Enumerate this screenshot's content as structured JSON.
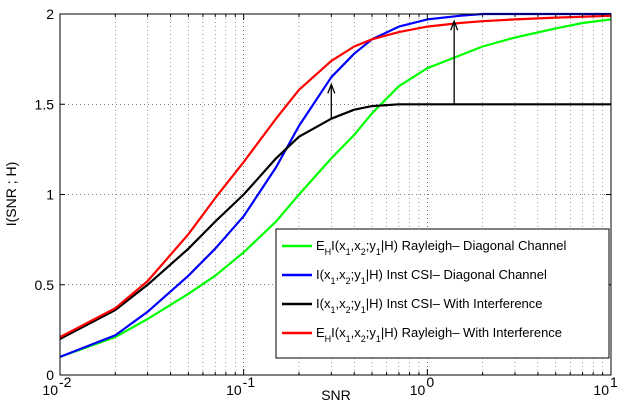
{
  "chart_data": {
    "type": "line",
    "title": "",
    "xlabel": "SNR",
    "ylabel": "I(SNR ; H)",
    "x_scale": "log",
    "xlim": [
      0.01,
      10
    ],
    "ylim": [
      0,
      2
    ],
    "grid": true,
    "legend_position": "lower-right",
    "x_ticks": [
      {
        "value": 0.01,
        "base": "10",
        "exp": "-2"
      },
      {
        "value": 0.1,
        "base": "10",
        "exp": "-1"
      },
      {
        "value": 1,
        "base": "10",
        "exp": "0"
      },
      {
        "value": 10,
        "base": "10",
        "exp": "1"
      }
    ],
    "y_ticks": [
      {
        "value": 0,
        "label": "0"
      },
      {
        "value": 0.5,
        "label": "0.5"
      },
      {
        "value": 1,
        "label": "1"
      },
      {
        "value": 1.5,
        "label": "1.5"
      },
      {
        "value": 2,
        "label": "2"
      }
    ],
    "series": [
      {
        "key": "green",
        "color": "#00ff00",
        "legend_parts": [
          [
            "E",
            ""
          ],
          [
            "H",
            "sub"
          ],
          [
            "I(x",
            ""
          ],
          [
            "1",
            "sub"
          ],
          [
            ",x",
            ""
          ],
          [
            "2",
            "sub"
          ],
          [
            ";y",
            ""
          ],
          [
            "1",
            "sub"
          ],
          [
            "|H) Rayleigh– Diagonal Channel",
            ""
          ]
        ],
        "x": [
          0.01,
          0.02,
          0.03,
          0.05,
          0.07,
          0.1,
          0.15,
          0.2,
          0.3,
          0.4,
          0.5,
          0.7,
          1,
          1.5,
          2,
          3,
          5,
          7,
          10
        ],
        "y": [
          0.1,
          0.21,
          0.31,
          0.45,
          0.55,
          0.68,
          0.85,
          1.0,
          1.2,
          1.33,
          1.45,
          1.6,
          1.7,
          1.77,
          1.82,
          1.87,
          1.92,
          1.95,
          1.97
        ]
      },
      {
        "key": "blue",
        "color": "#0000ff",
        "legend_parts": [
          [
            "I(x",
            ""
          ],
          [
            "1",
            "sub"
          ],
          [
            ",x",
            ""
          ],
          [
            "2",
            "sub"
          ],
          [
            ";y",
            ""
          ],
          [
            "1",
            "sub"
          ],
          [
            "|H) Inst CSI– Diagonal Channel",
            ""
          ]
        ],
        "x": [
          0.01,
          0.02,
          0.03,
          0.05,
          0.07,
          0.1,
          0.15,
          0.2,
          0.3,
          0.4,
          0.5,
          0.7,
          1,
          1.5,
          2,
          3,
          5,
          10
        ],
        "y": [
          0.1,
          0.22,
          0.35,
          0.55,
          0.7,
          0.88,
          1.15,
          1.38,
          1.65,
          1.78,
          1.86,
          1.93,
          1.97,
          1.99,
          2.0,
          2.0,
          2.0,
          2.0
        ]
      },
      {
        "key": "black",
        "color": "#000000",
        "legend_parts": [
          [
            "I(x",
            ""
          ],
          [
            "1",
            "sub"
          ],
          [
            ",x",
            ""
          ],
          [
            "2",
            "sub"
          ],
          [
            ";y",
            ""
          ],
          [
            "1",
            "sub"
          ],
          [
            "|H) Inst CSI– With Interference",
            ""
          ]
        ],
        "x": [
          0.01,
          0.02,
          0.03,
          0.05,
          0.07,
          0.1,
          0.15,
          0.2,
          0.3,
          0.4,
          0.5,
          0.7,
          1,
          2,
          5,
          10
        ],
        "y": [
          0.2,
          0.36,
          0.5,
          0.7,
          0.85,
          1.0,
          1.2,
          1.32,
          1.42,
          1.47,
          1.49,
          1.5,
          1.5,
          1.5,
          1.5,
          1.5
        ]
      },
      {
        "key": "red",
        "color": "#ff0000",
        "legend_parts": [
          [
            "E",
            ""
          ],
          [
            "H",
            "sub"
          ],
          [
            "I(x",
            ""
          ],
          [
            "1",
            "sub"
          ],
          [
            ",x",
            ""
          ],
          [
            "2",
            "sub"
          ],
          [
            ";y",
            ""
          ],
          [
            "1",
            "sub"
          ],
          [
            "|H) Rayleigh– With Interference",
            ""
          ]
        ],
        "x": [
          0.01,
          0.02,
          0.03,
          0.05,
          0.07,
          0.1,
          0.15,
          0.2,
          0.3,
          0.4,
          0.5,
          0.7,
          1,
          1.5,
          2,
          3,
          5,
          10
        ],
        "y": [
          0.21,
          0.37,
          0.52,
          0.78,
          0.98,
          1.18,
          1.42,
          1.58,
          1.74,
          1.82,
          1.86,
          1.9,
          1.93,
          1.95,
          1.96,
          1.97,
          1.98,
          1.99
        ]
      }
    ],
    "annotations": [
      {
        "type": "arrow",
        "x": 0.3,
        "y_from": 1.42,
        "y_to": 1.61
      },
      {
        "type": "arrow",
        "x": 1.4,
        "y_from": 1.5,
        "y_to": 1.96
      }
    ]
  }
}
